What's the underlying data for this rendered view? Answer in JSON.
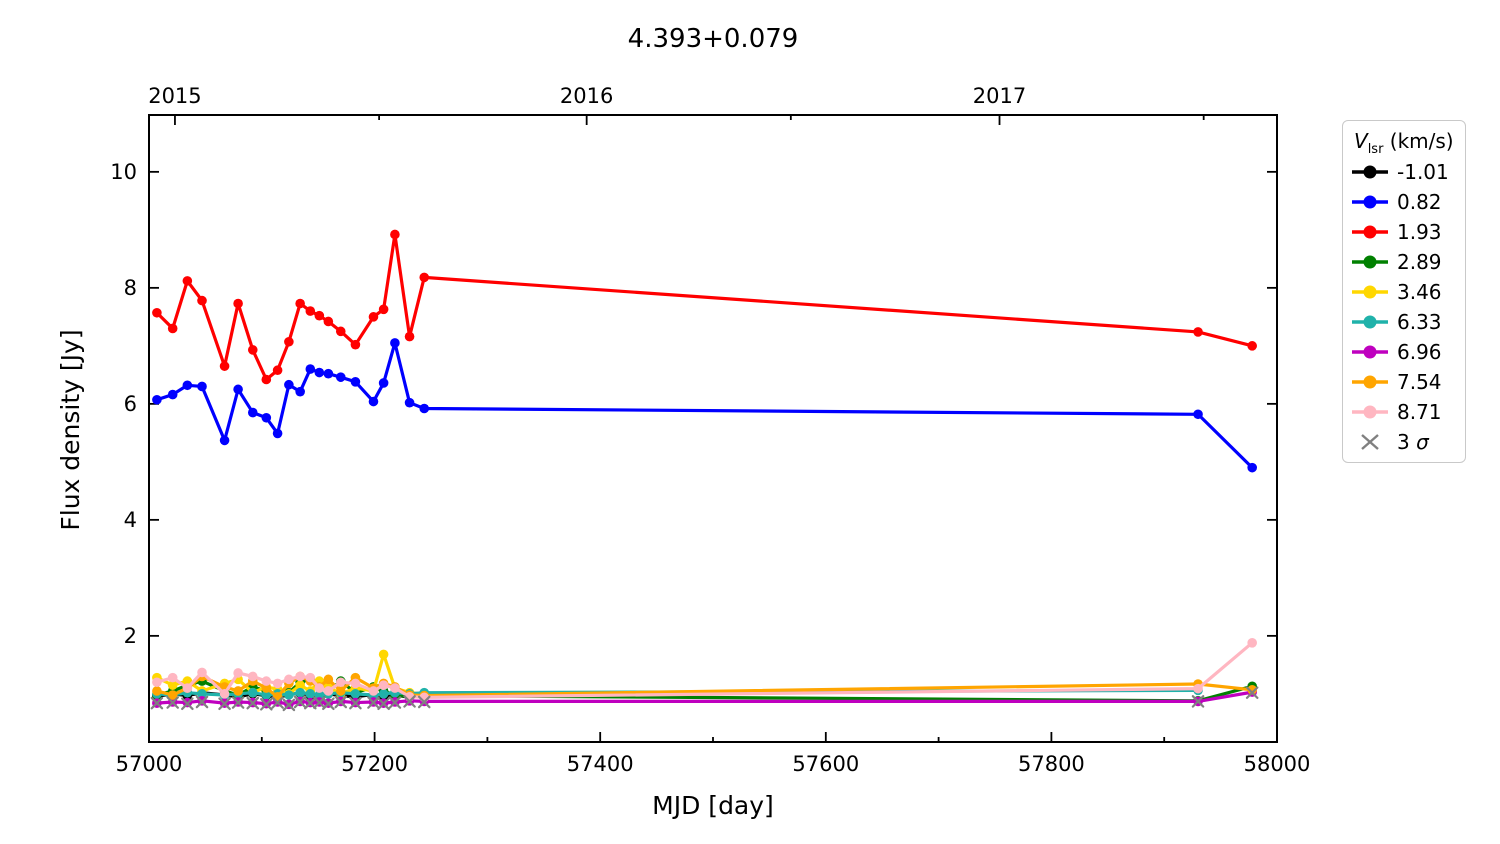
{
  "chart_data": {
    "type": "line",
    "title": "4.393+0.079",
    "xlabel": "MJD [day]",
    "ylabel": "Flux density [Jy]",
    "xlim": [
      57000,
      58000
    ],
    "ylim": [
      0.17,
      10.98
    ],
    "x_major_ticks": [
      57000,
      57200,
      57400,
      57600,
      57800,
      58000
    ],
    "x_minor_ticks": [
      57100,
      57300,
      57500,
      57700,
      57900
    ],
    "y_major_ticks": [
      2,
      4,
      6,
      8,
      10
    ],
    "top_axis_major": [
      {
        "mjd": 57023,
        "label": "2015"
      },
      {
        "mjd": 57388,
        "label": "2016"
      },
      {
        "mjd": 57754,
        "label": "2017"
      }
    ],
    "top_axis_minor": [
      57204,
      57569,
      57935
    ],
    "grid": false,
    "legend": {
      "title_var": "V",
      "title_sub": "lsr",
      "title_rest": " (km/s)",
      "position": "outside-right",
      "sigma_prefix": "3 ",
      "sigma_symbol": "σ",
      "sigma_color": "#808080"
    },
    "series": [
      {
        "name": "-1.01",
        "color": "#000000",
        "x": [
          57007,
          57021,
          57034,
          57047,
          57067,
          57079,
          57092,
          57104,
          57114,
          57124,
          57134,
          57143,
          57151,
          57159,
          57170,
          57183,
          57199,
          57208,
          57218,
          57231,
          57244
        ],
        "y": [
          0.96,
          1.0,
          0.97,
          1.02,
          0.98,
          0.95,
          1.0,
          0.97,
          0.93,
          0.99,
          1.01,
          0.98,
          0.96,
          1.0,
          0.97,
          0.95,
          0.99,
          0.96,
          0.98,
          0.94,
          0.96
        ]
      },
      {
        "name": "0.82",
        "color": "#0000ff",
        "x": [
          57007,
          57021,
          57034,
          57047,
          57067,
          57079,
          57092,
          57104,
          57114,
          57124,
          57134,
          57143,
          57151,
          57159,
          57170,
          57183,
          57199,
          57208,
          57218,
          57231,
          57244,
          57930,
          57978
        ],
        "y": [
          6.07,
          6.16,
          6.32,
          6.3,
          5.37,
          6.25,
          5.85,
          5.76,
          5.49,
          6.33,
          6.21,
          6.6,
          6.54,
          6.52,
          6.46,
          6.38,
          6.04,
          6.36,
          7.05,
          6.02,
          5.92,
          5.82,
          4.9
        ]
      },
      {
        "name": "1.93",
        "color": "#ff0000",
        "x": [
          57007,
          57021,
          57034,
          57047,
          57067,
          57079,
          57092,
          57104,
          57114,
          57124,
          57134,
          57143,
          57151,
          57159,
          57170,
          57183,
          57199,
          57208,
          57218,
          57231,
          57244,
          57930,
          57978
        ],
        "y": [
          7.57,
          7.3,
          8.12,
          7.78,
          6.65,
          7.73,
          6.93,
          6.42,
          6.58,
          7.07,
          7.73,
          7.6,
          7.52,
          7.42,
          7.25,
          7.02,
          7.5,
          7.63,
          8.92,
          7.16,
          8.18,
          7.24,
          7.0
        ]
      },
      {
        "name": "2.89",
        "color": "#008000",
        "x": [
          57007,
          57021,
          57034,
          57047,
          57067,
          57079,
          57092,
          57104,
          57114,
          57124,
          57134,
          57143,
          57151,
          57159,
          57170,
          57183,
          57199,
          57208,
          57218,
          57231,
          57244,
          57930,
          57978
        ],
        "y": [
          0.98,
          1.05,
          1.15,
          1.22,
          1.05,
          0.98,
          1.12,
          1.05,
          0.95,
          1.02,
          1.2,
          1.25,
          1.12,
          1.05,
          1.22,
          1.02,
          1.12,
          1.05,
          0.98,
          0.95,
          0.97,
          0.88,
          1.13
        ]
      },
      {
        "name": "3.46",
        "color": "#ffd700",
        "x": [
          57007,
          57021,
          57034,
          57047,
          57067,
          57079,
          57092,
          57104,
          57114,
          57124,
          57134,
          57143,
          57151,
          57159,
          57170,
          57183,
          57199,
          57208,
          57218,
          57231,
          57244
        ],
        "y": [
          1.28,
          1.15,
          1.22,
          1.05,
          1.18,
          1.25,
          1.02,
          1.12,
          1.08,
          1.0,
          1.15,
          1.05,
          1.22,
          1.12,
          1.0,
          1.1,
          1.05,
          1.68,
          1.1,
          1.02,
          1.0
        ]
      },
      {
        "name": "6.33",
        "color": "#20b2aa",
        "x": [
          57007,
          57021,
          57034,
          57047,
          57067,
          57079,
          57092,
          57104,
          57114,
          57124,
          57134,
          57143,
          57151,
          57159,
          57170,
          57183,
          57199,
          57208,
          57218,
          57231,
          57244,
          57930
        ],
        "y": [
          1.0,
          0.98,
          1.02,
          1.0,
          0.98,
          1.0,
          1.02,
          0.98,
          1.0,
          0.98,
          1.02,
          1.0,
          0.98,
          1.0,
          1.02,
          1.0,
          0.98,
          1.0,
          1.02,
          1.0,
          1.02,
          1.06
        ]
      },
      {
        "name": "6.96",
        "color": "#bf00bf",
        "x": [
          57007,
          57021,
          57034,
          57047,
          57067,
          57079,
          57092,
          57104,
          57114,
          57124,
          57134,
          57143,
          57151,
          57159,
          57170,
          57183,
          57199,
          57208,
          57218,
          57231,
          57244,
          57930,
          57978
        ],
        "y": [
          0.84,
          0.86,
          0.85,
          0.88,
          0.84,
          0.86,
          0.85,
          0.83,
          0.86,
          0.82,
          0.87,
          0.85,
          0.86,
          0.84,
          0.87,
          0.85,
          0.86,
          0.84,
          0.86,
          0.88,
          0.87,
          0.87,
          1.03
        ]
      },
      {
        "name": "7.54",
        "color": "#ffa500",
        "x": [
          57007,
          57021,
          57034,
          57047,
          57067,
          57079,
          57092,
          57104,
          57114,
          57124,
          57134,
          57143,
          57151,
          57159,
          57170,
          57183,
          57199,
          57208,
          57218,
          57231,
          57244,
          57930,
          57978
        ],
        "y": [
          1.05,
          0.98,
          1.1,
          1.3,
          1.12,
          1.05,
          1.22,
          1.1,
          0.95,
          1.18,
          1.3,
          1.22,
          1.12,
          1.25,
          1.05,
          1.28,
          1.1,
          1.18,
          1.12,
          0.98,
          0.97,
          1.17,
          1.07
        ]
      },
      {
        "name": "8.71",
        "color": "#ffb6c1",
        "x": [
          57007,
          57021,
          57034,
          57047,
          57067,
          57079,
          57092,
          57104,
          57114,
          57124,
          57134,
          57143,
          57151,
          57159,
          57170,
          57183,
          57199,
          57208,
          57218,
          57231,
          57244,
          57930,
          57978
        ],
        "y": [
          1.2,
          1.28,
          1.1,
          1.37,
          1.0,
          1.36,
          1.3,
          1.22,
          1.18,
          1.25,
          1.3,
          1.28,
          1.1,
          1.05,
          1.2,
          1.18,
          1.05,
          1.15,
          1.1,
          0.95,
          0.94,
          1.09,
          1.88
        ]
      }
    ],
    "sigma_scatter": {
      "name": "3 σ",
      "color": "#808080",
      "x": [
        57007,
        57021,
        57034,
        57047,
        57067,
        57079,
        57092,
        57104,
        57114,
        57124,
        57134,
        57143,
        57151,
        57159,
        57170,
        57183,
        57199,
        57208,
        57218,
        57231,
        57244,
        57930,
        57978
      ],
      "y": [
        0.84,
        0.85,
        0.83,
        0.86,
        0.83,
        0.85,
        0.84,
        0.82,
        0.85,
        0.81,
        0.86,
        0.84,
        0.85,
        0.83,
        0.86,
        0.84,
        0.85,
        0.83,
        0.85,
        0.87,
        0.86,
        0.87,
        1.02
      ]
    }
  }
}
